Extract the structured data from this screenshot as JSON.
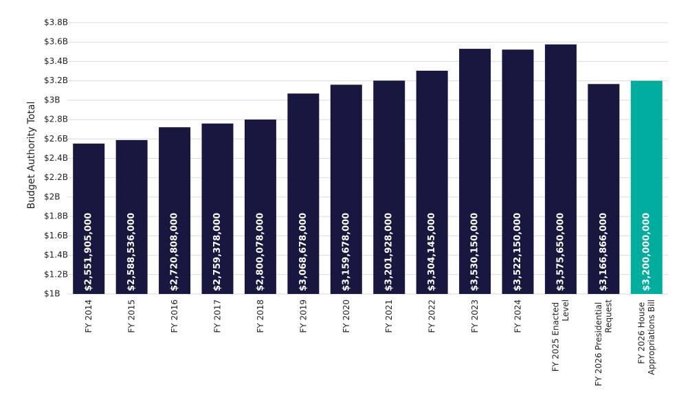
{
  "chart_data": {
    "type": "bar",
    "y_axis_label": "Budget Authority Total",
    "categories": [
      "FY 2014",
      "FY 2015",
      "FY 2016",
      "FY 2017",
      "FY 2018",
      "FY 2019",
      "FY 2020",
      "FY 2021",
      "FY 2022",
      "FY 2023",
      "FY 2024",
      "FY 2025 Enacted Level",
      "FY 2026 Presidential Request",
      "FY 2026 House Appropriations Bill"
    ],
    "values": [
      2551905000,
      2588536000,
      2720808000,
      2759378000,
      2800078000,
      3068678000,
      3159678000,
      3201928000,
      3304145000,
      3530150000,
      3522150000,
      3575650000,
      3166866000,
      3200000000
    ],
    "value_labels": [
      "$2,551,905,000",
      "$2,588,536,000",
      "$2,720,808,000",
      "$2,759,378,000",
      "$2,800,078,000",
      "$3,068,678,000",
      "$3,159,678,000",
      "$3,201,928,000",
      "$3,304,145,000",
      "$3,530,150,000",
      "$3,522,150,000",
      "$3,575,650,000",
      "$3,166,866,000",
      "$3,200,000,000"
    ],
    "colors": [
      "#18173f",
      "#18173f",
      "#18173f",
      "#18173f",
      "#18173f",
      "#18173f",
      "#18173f",
      "#18173f",
      "#18173f",
      "#18173f",
      "#18173f",
      "#18173f",
      "#18173f",
      "#00ad9f"
    ],
    "ylim": [
      1000000000,
      3800000000
    ],
    "yticks": [
      {
        "value": 1000000000,
        "label": "$1B"
      },
      {
        "value": 1200000000,
        "label": "$1.2B"
      },
      {
        "value": 1400000000,
        "label": "$1.4B"
      },
      {
        "value": 1600000000,
        "label": "$1.6B"
      },
      {
        "value": 1800000000,
        "label": "$1.8B"
      },
      {
        "value": 2000000000,
        "label": "$2B"
      },
      {
        "value": 2200000000,
        "label": "$2.2B"
      },
      {
        "value": 2400000000,
        "label": "$2.4B"
      },
      {
        "value": 2600000000,
        "label": "$2.6B"
      },
      {
        "value": 2800000000,
        "label": "$2.8B"
      },
      {
        "value": 3000000000,
        "label": "$3B"
      },
      {
        "value": 3200000000,
        "label": "$3.2B"
      },
      {
        "value": 3400000000,
        "label": "$3.4B"
      },
      {
        "value": 3600000000,
        "label": "$3.6B"
      },
      {
        "value": 3800000000,
        "label": "$3.8B"
      }
    ],
    "grid": true
  }
}
